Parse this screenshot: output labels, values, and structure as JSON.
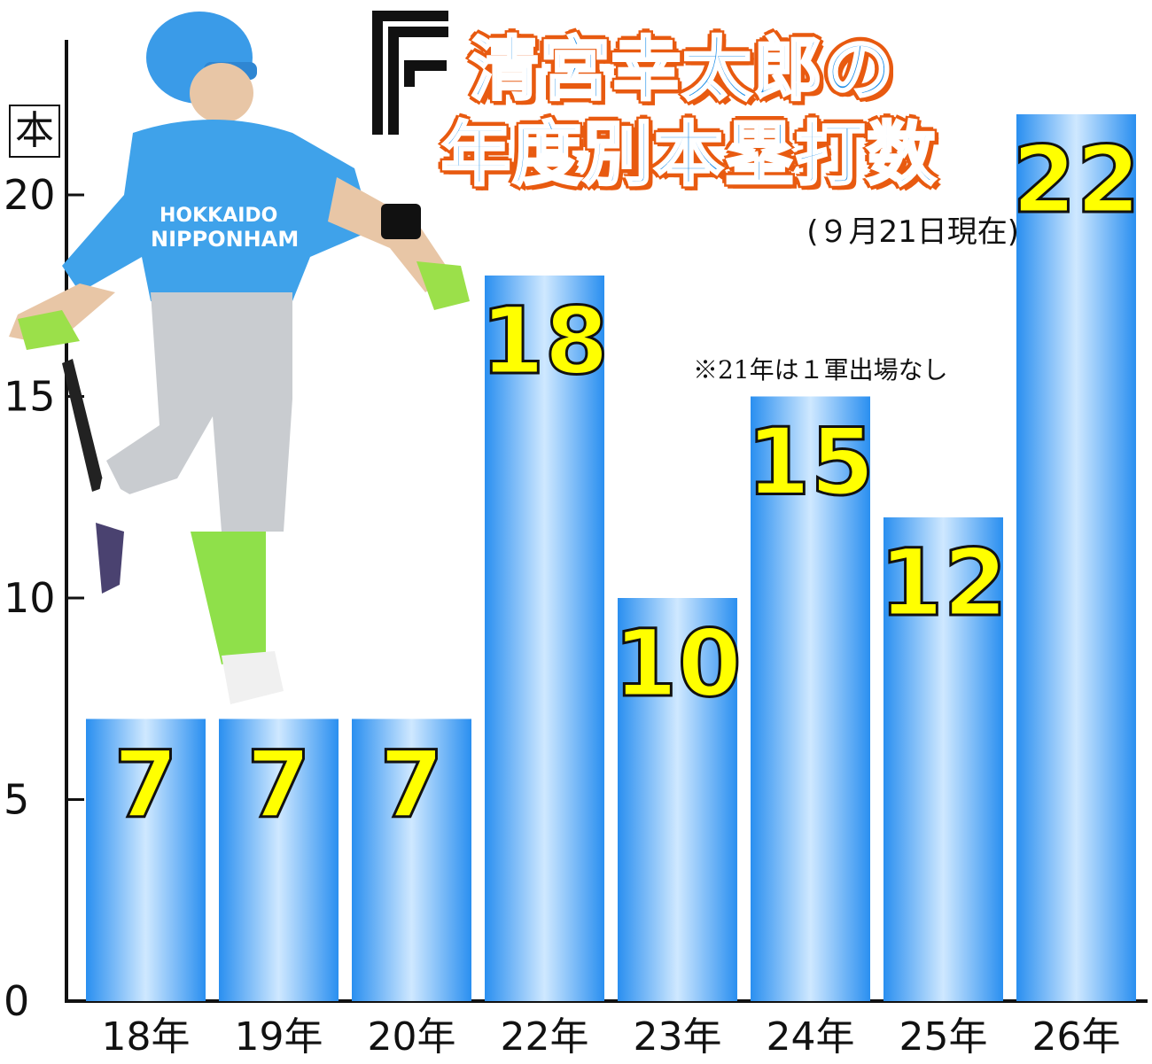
{
  "title": {
    "line1": "清宮幸太郎の",
    "line2": "年度別本塁打数"
  },
  "date_note": "(９月21日現在)",
  "exclusion_note": "※21年は１軍出場なし",
  "unit_label": "本",
  "colors": {
    "bar": "#2a8ff0",
    "bar_highlight": "#cfe8ff",
    "value_label": "#ffff00",
    "title_fill": "#1f8fe8",
    "title_outline": "#e85a10"
  },
  "icons": [
    "fighters-f-logo-icon",
    "batter-photo"
  ],
  "chart_data": {
    "type": "bar",
    "title": "清宮幸太郎の年度別本塁打数",
    "categories": [
      "18年",
      "19年",
      "20年",
      "22年",
      "23年",
      "24年",
      "25年",
      "26年"
    ],
    "values": [
      7,
      7,
      7,
      18,
      10,
      15,
      12,
      22
    ],
    "value_labels": [
      "7",
      "7",
      "7",
      "18",
      "10",
      "15",
      "12",
      "22"
    ],
    "ylabel": "本",
    "ylim": [
      0,
      23
    ],
    "yticks": [
      0,
      5,
      10,
      15,
      20
    ],
    "ytick_labels": [
      "0",
      "5",
      "10",
      "15",
      "20"
    ],
    "grid": false,
    "legend": "none"
  }
}
